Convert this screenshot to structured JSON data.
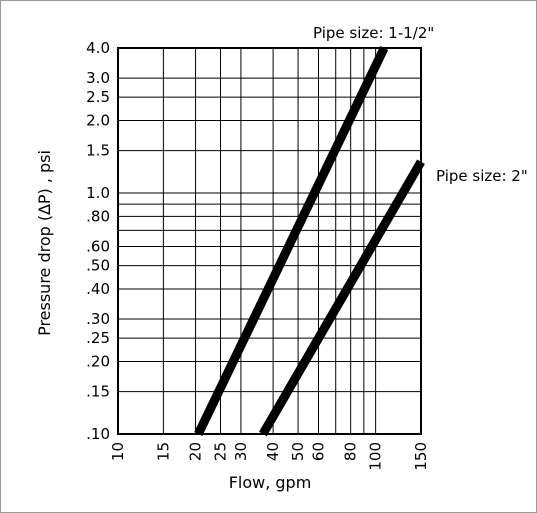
{
  "chart_data": {
    "type": "line",
    "title": "",
    "xlabel": "Flow, gpm",
    "ylabel": "Pressure drop (∆P) , psi",
    "xscale": "log",
    "yscale": "log",
    "xlim": [
      10,
      150
    ],
    "ylim": [
      0.1,
      4.0
    ],
    "grid": true,
    "x_ticks": [
      10,
      15,
      20,
      25,
      30,
      40,
      50,
      60,
      80,
      100,
      150
    ],
    "x_tick_labels": [
      "10",
      "15",
      "20",
      "25",
      "30",
      "40",
      "50",
      "60",
      "80",
      "100",
      "150"
    ],
    "y_ticks": [
      0.1,
      0.15,
      0.2,
      0.25,
      0.3,
      0.4,
      0.5,
      0.6,
      0.8,
      1.0,
      1.5,
      2.0,
      2.5,
      3.0,
      4.0
    ],
    "y_tick_labels": [
      ".10",
      ".15",
      ".20",
      ".25",
      ".30",
      ".40",
      ".50",
      ".60",
      ".80",
      "1.0",
      "1.5",
      "2.0",
      "2.5",
      "3.0",
      "4.0"
    ],
    "x_minor_gridlines": [
      70,
      90
    ],
    "y_minor_gridlines": [
      0.7,
      0.9
    ],
    "series": [
      {
        "name": "Pipe size: 1-1/2\"",
        "x": [
          20.5,
          108
        ],
        "y": [
          0.1,
          4.0
        ],
        "color": "#000000"
      },
      {
        "name": "Pipe size: 2\"",
        "x": [
          36.5,
          150
        ],
        "y": [
          0.1,
          1.35
        ],
        "color": "#000000"
      }
    ]
  }
}
